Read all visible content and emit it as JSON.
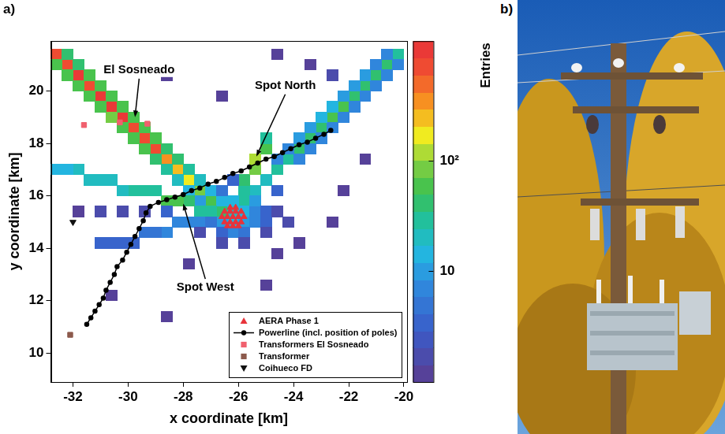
{
  "chart_data": {
    "type": "scatter",
    "panel_label": "a)",
    "x_label": "x coordinate [km]",
    "y_label": "y coordinate [km]",
    "xlim": [
      -32.8,
      -19.9
    ],
    "ylim": [
      8.9,
      21.9
    ],
    "xticks": [
      -32,
      -30,
      -28,
      -26,
      -24,
      -22,
      -20
    ],
    "yticks": [
      10,
      12,
      14,
      16,
      18,
      20
    ],
    "grid": false,
    "legend": "lower right",
    "bin_width": 0.4,
    "cells": [
      [
        -26.6,
        15.4,
        40
      ],
      [
        -27.0,
        15.8,
        60
      ],
      [
        -27.4,
        16.2,
        90
      ],
      [
        -27.8,
        16.6,
        150
      ],
      [
        -28.2,
        17.0,
        250
      ],
      [
        -28.6,
        17.4,
        400
      ],
      [
        -29.0,
        17.8,
        600
      ],
      [
        -29.4,
        18.2,
        750
      ],
      [
        -29.8,
        18.6,
        800
      ],
      [
        -30.2,
        19.0,
        900
      ],
      [
        -30.6,
        19.4,
        850
      ],
      [
        -31.0,
        19.8,
        900
      ],
      [
        -31.4,
        20.2,
        800
      ],
      [
        -31.8,
        20.6,
        850
      ],
      [
        -32.2,
        21.0,
        700
      ],
      [
        -32.6,
        21.4,
        650
      ],
      [
        -27.4,
        15.8,
        10
      ],
      [
        -26.6,
        15.8,
        12
      ],
      [
        -27.8,
        16.2,
        15
      ],
      [
        -27.0,
        16.2,
        15
      ],
      [
        -28.2,
        16.6,
        20
      ],
      [
        -27.4,
        16.6,
        20
      ],
      [
        -28.6,
        17.0,
        30
      ],
      [
        -27.8,
        17.0,
        25
      ],
      [
        -29.0,
        17.4,
        45
      ],
      [
        -28.2,
        17.4,
        35
      ],
      [
        -29.4,
        17.8,
        60
      ],
      [
        -28.6,
        17.8,
        45
      ],
      [
        -29.8,
        18.2,
        70
      ],
      [
        -29.0,
        18.2,
        50
      ],
      [
        -30.2,
        18.6,
        70
      ],
      [
        -29.4,
        18.6,
        55
      ],
      [
        -30.6,
        19.0,
        75
      ],
      [
        -29.8,
        19.0,
        60
      ],
      [
        -31.0,
        19.4,
        70
      ],
      [
        -30.2,
        19.4,
        55
      ],
      [
        -31.4,
        19.8,
        70
      ],
      [
        -30.6,
        19.8,
        60
      ],
      [
        -31.8,
        20.2,
        65
      ],
      [
        -31.0,
        20.2,
        55
      ],
      [
        -32.2,
        20.6,
        60
      ],
      [
        -31.4,
        20.6,
        50
      ],
      [
        -32.6,
        21.0,
        55
      ],
      [
        -31.8,
        21.0,
        45
      ],
      [
        -32.2,
        21.4,
        45
      ],
      [
        -25.8,
        15.8,
        25
      ],
      [
        -25.4,
        16.2,
        20
      ],
      [
        -25.0,
        16.6,
        20
      ],
      [
        -24.6,
        17.0,
        25
      ],
      [
        -24.2,
        17.4,
        30
      ],
      [
        -23.8,
        17.8,
        35
      ],
      [
        -23.4,
        18.2,
        40
      ],
      [
        -23.0,
        18.6,
        45
      ],
      [
        -22.6,
        19.0,
        50
      ],
      [
        -22.2,
        19.4,
        50
      ],
      [
        -21.8,
        19.8,
        45
      ],
      [
        -21.4,
        20.2,
        45
      ],
      [
        -21.0,
        20.6,
        40
      ],
      [
        -20.6,
        21.0,
        35
      ],
      [
        -20.2,
        21.4,
        30
      ],
      [
        -24.6,
        17.4,
        8
      ],
      [
        -23.8,
        17.4,
        6
      ],
      [
        -24.2,
        17.8,
        8
      ],
      [
        -23.4,
        17.8,
        6
      ],
      [
        -23.8,
        18.2,
        10
      ],
      [
        -23.0,
        18.2,
        7
      ],
      [
        -23.4,
        18.6,
        10
      ],
      [
        -22.6,
        18.6,
        8
      ],
      [
        -23.0,
        19.0,
        12
      ],
      [
        -22.2,
        19.0,
        8
      ],
      [
        -22.6,
        19.4,
        12
      ],
      [
        -21.8,
        19.4,
        8
      ],
      [
        -22.2,
        19.8,
        10
      ],
      [
        -21.4,
        19.8,
        7
      ],
      [
        -21.8,
        20.2,
        10
      ],
      [
        -21.0,
        20.2,
        7
      ],
      [
        -21.4,
        20.6,
        9
      ],
      [
        -20.6,
        20.6,
        6
      ],
      [
        -21.0,
        21.0,
        8
      ],
      [
        -20.2,
        21.0,
        6
      ],
      [
        -20.6,
        21.4,
        7
      ],
      [
        -25.8,
        16.2,
        30
      ],
      [
        -25.8,
        16.6,
        40
      ],
      [
        -25.4,
        17.0,
        80
      ],
      [
        -25.4,
        17.4,
        130
      ],
      [
        -25.0,
        17.8,
        60
      ],
      [
        -25.0,
        18.2,
        30
      ],
      [
        -27.0,
        15.4,
        30
      ],
      [
        -27.4,
        15.4,
        25
      ],
      [
        -27.8,
        15.8,
        40
      ],
      [
        -28.2,
        15.8,
        70
      ],
      [
        -28.6,
        15.8,
        50
      ],
      [
        -29.0,
        16.2,
        30
      ],
      [
        -29.4,
        16.2,
        25
      ],
      [
        -29.8,
        16.2,
        25
      ],
      [
        -30.2,
        16.2,
        20
      ],
      [
        -30.6,
        16.6,
        20
      ],
      [
        -31.0,
        16.6,
        20
      ],
      [
        -31.4,
        16.6,
        18
      ],
      [
        -31.8,
        17.0,
        18
      ],
      [
        -32.2,
        17.0,
        15
      ],
      [
        -32.6,
        17.0,
        15
      ],
      [
        -27.4,
        15.0,
        8
      ],
      [
        -27.8,
        15.0,
        7
      ],
      [
        -28.2,
        15.0,
        6
      ],
      [
        -28.6,
        14.6,
        6
      ],
      [
        -29.0,
        14.6,
        5
      ],
      [
        -29.4,
        14.6,
        5
      ],
      [
        -29.8,
        14.2,
        4
      ],
      [
        -30.2,
        14.2,
        4
      ],
      [
        -30.6,
        14.2,
        3
      ],
      [
        -31.0,
        14.2,
        3
      ],
      [
        -28.6,
        15.4,
        3
      ],
      [
        -29.4,
        15.4,
        2
      ],
      [
        -30.2,
        15.4,
        2
      ],
      [
        -31.0,
        15.4,
        2
      ],
      [
        -31.8,
        15.4,
        1
      ],
      [
        -26.2,
        15.4,
        20
      ],
      [
        -25.8,
        15.4,
        15
      ],
      [
        -26.2,
        15.0,
        12
      ],
      [
        -25.8,
        15.0,
        10
      ],
      [
        -26.6,
        15.0,
        10
      ],
      [
        -26.2,
        14.6,
        6
      ],
      [
        -25.8,
        14.6,
        5
      ],
      [
        -26.6,
        14.6,
        4
      ],
      [
        -25.4,
        15.0,
        6
      ],
      [
        -25.4,
        15.4,
        8
      ],
      [
        -26.2,
        15.8,
        15
      ],
      [
        -25.4,
        15.8,
        10
      ],
      [
        -25.0,
        15.4,
        4
      ],
      [
        -25.0,
        15.0,
        3
      ],
      [
        -27.0,
        15.0,
        5
      ],
      [
        -26.6,
        14.2,
        2
      ],
      [
        -25.8,
        14.2,
        2
      ],
      [
        -25.0,
        14.6,
        2
      ],
      [
        -24.6,
        15.4,
        2
      ],
      [
        -24.6,
        16.2,
        3
      ],
      [
        -26.6,
        16.2,
        5
      ],
      [
        -26.2,
        16.6,
        3
      ],
      [
        -24.2,
        15.0,
        2
      ],
      [
        -27.4,
        14.6,
        2
      ],
      [
        -22.6,
        20.6,
        2
      ],
      [
        -23.4,
        21.0,
        1
      ],
      [
        -24.6,
        21.4,
        1
      ],
      [
        -27.8,
        13.4,
        1
      ],
      [
        -23.8,
        14.2,
        1
      ],
      [
        -22.2,
        16.2,
        1
      ],
      [
        -28.6,
        20.6,
        1
      ],
      [
        -30.6,
        12.2,
        1
      ],
      [
        -25.0,
        12.6,
        1
      ],
      [
        -21.4,
        17.4,
        1
      ],
      [
        -24.6,
        13.8,
        1
      ],
      [
        -22.6,
        15.0,
        1
      ],
      [
        -26.6,
        19.8,
        1
      ],
      [
        -28.6,
        11.4,
        1
      ]
    ],
    "colorbar": {
      "label": "Entries",
      "log": true,
      "range": [
        1,
        1200
      ],
      "ticks": [
        10,
        {
          "value": 100,
          "label": "10²"
        }
      ]
    },
    "annotations": [
      {
        "text": "El Sosneado",
        "x": -29.6,
        "y": 20.8,
        "arrow_to": [
          -29.75,
          19.0
        ]
      },
      {
        "text": "Spot North",
        "x": -24.3,
        "y": 20.2,
        "arrow_to": [
          -25.35,
          17.5
        ]
      },
      {
        "text": "Spot West",
        "x": -27.2,
        "y": 12.5,
        "arrow_to": [
          -28.0,
          15.7
        ]
      }
    ],
    "series": [
      {
        "name": "AERA Phase 1",
        "type": "scatter",
        "marker": "triangle",
        "color": "#e8333a",
        "x": [
          -26.5,
          -26.3,
          -26.1,
          -25.9,
          -26.6,
          -26.4,
          -26.2,
          -26.0,
          -25.8,
          -26.5,
          -26.3,
          -26.1,
          -25.9,
          -26.4,
          -26.2,
          -26.0,
          -26.3,
          -26.1
        ],
        "values": [
          15.4,
          15.4,
          15.4,
          15.4,
          15.2,
          15.2,
          15.2,
          15.2,
          15.2,
          15.0,
          15.0,
          15.0,
          15.0,
          14.85,
          14.85,
          14.85,
          15.55,
          15.55
        ]
      },
      {
        "name": "Powerline (incl. position of poles)",
        "type": "line",
        "marker": "circle",
        "color": "#000000",
        "x": [
          -31.5,
          -31.35,
          -31.2,
          -31.05,
          -30.9,
          -30.8,
          -30.65,
          -30.5,
          -30.4,
          -30.2,
          -30.05,
          -29.9,
          -29.75,
          -29.6,
          -29.45,
          -29.35,
          -29.2,
          -28.9,
          -28.6,
          -28.3,
          -28.0,
          -27.7,
          -27.4,
          -27.1,
          -26.8,
          -26.5,
          -26.2,
          -25.9,
          -25.6,
          -25.3,
          -25.0,
          -24.7,
          -24.4,
          -24.1,
          -23.8,
          -23.5,
          -23.2,
          -22.9,
          -22.65
        ],
        "values": [
          11.1,
          11.35,
          11.6,
          11.85,
          12.1,
          12.4,
          12.7,
          13.0,
          13.3,
          13.55,
          13.85,
          14.15,
          14.45,
          14.75,
          15.05,
          15.35,
          15.6,
          15.75,
          15.85,
          15.95,
          16.05,
          16.2,
          16.3,
          16.45,
          16.55,
          16.7,
          16.85,
          16.95,
          17.1,
          17.25,
          17.4,
          17.5,
          17.65,
          17.8,
          17.95,
          18.05,
          18.2,
          18.35,
          18.5
        ]
      },
      {
        "name": "Transformers El Sosneado",
        "type": "scatter",
        "marker": "square",
        "color": "#f0606e",
        "x": [
          -31.6,
          -30.3,
          -29.3
        ],
        "values": [
          18.7,
          18.8,
          18.75
        ]
      },
      {
        "name": "Transformer",
        "type": "scatter",
        "marker": "square",
        "color": "#8c5a4c",
        "x": [
          -32.1
        ],
        "values": [
          10.7
        ]
      },
      {
        "name": "Coihueco FD",
        "type": "scatter",
        "marker": "triangle_down",
        "color": "#111111",
        "x": [
          -32.0
        ],
        "values": [
          15.0
        ]
      }
    ]
  },
  "photo": {
    "panel_label": "b)"
  }
}
